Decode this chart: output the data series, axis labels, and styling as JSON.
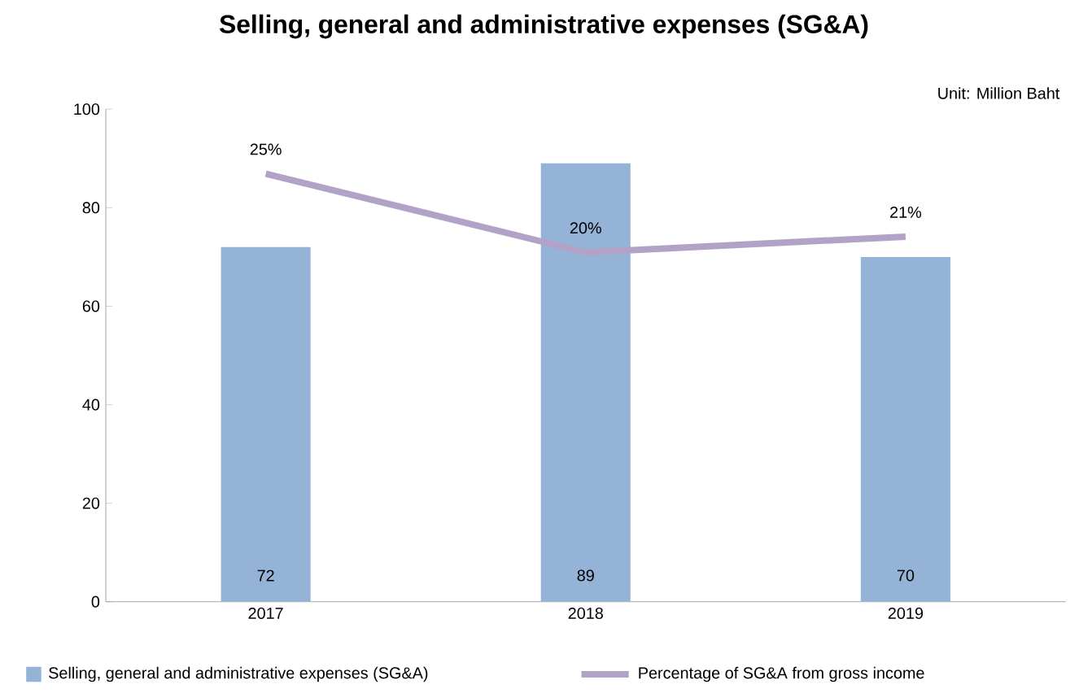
{
  "chart_data": {
    "type": "bar",
    "title": "Selling, general and administrative expenses (SG&A)",
    "annotations": [
      "Unit: Million Baht"
    ],
    "categories": [
      "2017",
      "2018",
      "2019"
    ],
    "series": [
      {
        "name": "Selling, general and administrative expenses (SG&A)",
        "color": "#95b3d7",
        "values": [
          72,
          89,
          70
        ],
        "value_labels": [
          "72",
          "89",
          "70"
        ]
      },
      {
        "name": "Percentage of SG&A from gross income",
        "type": "line",
        "axis": "y2",
        "color": "#b3a2c7",
        "values": [
          25,
          20,
          21
        ],
        "value_labels": [
          "25%",
          "20%",
          "21%"
        ]
      }
    ],
    "ylim": [
      0,
      100
    ],
    "yticks": [
      0,
      20,
      40,
      60,
      80,
      100
    ],
    "y2lim": [
      -2.2,
      29.1
    ],
    "legend": "bottom",
    "marker": "none",
    "line_style": "solid"
  }
}
